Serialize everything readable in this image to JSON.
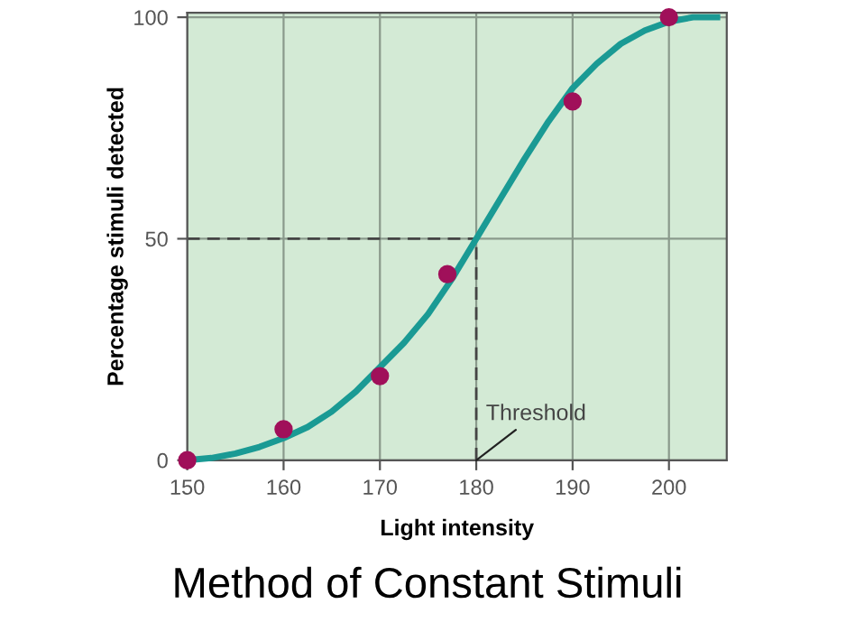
{
  "chart_data": {
    "type": "scatter",
    "title": "Method of Constant Stimuli",
    "xlabel": "Light intensity",
    "ylabel": "Percentage stimuli detected",
    "series": [
      {
        "type": "line",
        "marker": "none",
        "color": "#1a9a94",
        "x": [
          150,
          152.5,
          155,
          157.5,
          160,
          162.5,
          165,
          167.5,
          170,
          172.5,
          175,
          177.5,
          180,
          182.5,
          185,
          187.5,
          190,
          192.5,
          195,
          197.5,
          200,
          202.5,
          205
        ],
        "values": [
          0,
          0.5,
          1.5,
          3,
          5,
          7.5,
          11,
          15.5,
          21,
          26.5,
          33,
          41,
          50,
          59,
          68,
          76.5,
          84,
          89.5,
          94,
          97,
          99,
          100,
          100
        ]
      },
      {
        "marker": "circle",
        "color": "#a0105a",
        "x": [
          150,
          160,
          170,
          177,
          190,
          200
        ],
        "values": [
          0,
          7,
          19,
          42,
          81,
          100
        ]
      }
    ],
    "xlim": [
      150,
      206
    ],
    "ylim": [
      0,
      101
    ],
    "xticks": [
      150,
      160,
      170,
      180,
      190,
      200
    ],
    "yticks": [
      0,
      50,
      100
    ],
    "grid": true,
    "ref_lines": [
      {
        "axis": "y",
        "value": 50,
        "line_style": "dashed"
      },
      {
        "axis": "x",
        "value": 180,
        "label": "Threshold",
        "line_style": "dashed"
      }
    ]
  }
}
